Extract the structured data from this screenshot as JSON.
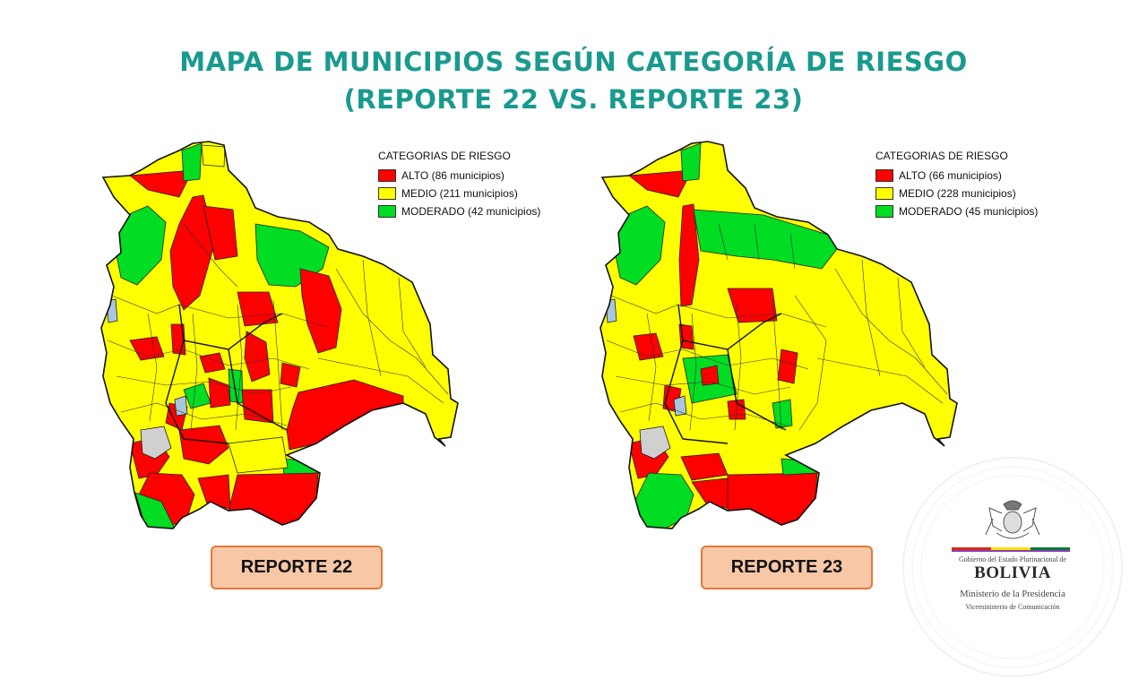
{
  "title": {
    "line1": "MAPA DE MUNICIPIOS SEGÚN CATEGORÍA DE RIESGO",
    "line2": "(REPORTE 22 VS. REPORTE 23)"
  },
  "maps": [
    {
      "report_label": "REPORTE 22",
      "legend": {
        "heading": "CATEGORIAS DE RIESGO",
        "items": [
          {
            "label": "ALTO (86 municipios)",
            "color": "#ff0000"
          },
          {
            "label": "MEDIO (211 municipios)",
            "color": "#ffff00"
          },
          {
            "label": "MODERADO (42 municipios)",
            "color": "#00dd22"
          }
        ]
      }
    },
    {
      "report_label": "REPORTE 23",
      "legend": {
        "heading": "CATEGORIAS DE RIESGO",
        "items": [
          {
            "label": "ALTO (66 municipios)",
            "color": "#ff0000"
          },
          {
            "label": "MEDIO (228 municipios)",
            "color": "#ffff00"
          },
          {
            "label": "MODERADO (45 municipios)",
            "color": "#00dd22"
          }
        ]
      }
    }
  ],
  "branding": {
    "line1": "Gobierno del Estado Plurinacional de",
    "line2": "BOLIVIA",
    "line3": "Ministerio de la Presidencia",
    "line4": "Viceministerio de Comunicación",
    "emblem_icon": "coat-of-arms-icon"
  }
}
